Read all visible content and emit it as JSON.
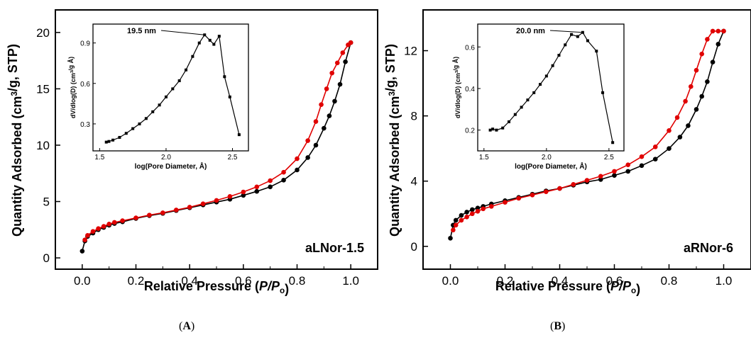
{
  "chart_data": [
    {
      "panel_label": "A",
      "type": "line",
      "xlabel": "Relative Pressure (P/Po)",
      "ylabel": "Quantity Adsorbed (cm3/g, STP)",
      "xlim": [
        -0.1,
        1.1
      ],
      "ylim": [
        -1,
        22
      ],
      "xticks": [
        "0.0",
        "0.2",
        "0.4",
        "0.6",
        "0.8",
        "1.0"
      ],
      "yticks": [
        "0",
        "5",
        "10",
        "15",
        "20"
      ],
      "sample_label": "aLNor-1.5",
      "series": [
        {
          "color": "#000000",
          "x": [
            0.0,
            0.01,
            0.02,
            0.04,
            0.06,
            0.08,
            0.1,
            0.12,
            0.15,
            0.2,
            0.25,
            0.3,
            0.35,
            0.4,
            0.45,
            0.5,
            0.55,
            0.6,
            0.65,
            0.7,
            0.75,
            0.8,
            0.84,
            0.87,
            0.9,
            0.92,
            0.94,
            0.96,
            0.98,
            1.0
          ],
          "y": [
            0.6,
            1.5,
            1.9,
            2.2,
            2.5,
            2.7,
            2.9,
            3.05,
            3.2,
            3.5,
            3.75,
            3.95,
            4.2,
            4.45,
            4.7,
            4.95,
            5.2,
            5.55,
            5.9,
            6.3,
            6.9,
            7.8,
            8.9,
            10.0,
            11.5,
            12.6,
            13.9,
            15.4,
            17.4,
            19.1
          ]
        },
        {
          "color": "#e00000",
          "x": [
            0.01,
            0.02,
            0.04,
            0.06,
            0.08,
            0.1,
            0.12,
            0.15,
            0.2,
            0.25,
            0.3,
            0.35,
            0.4,
            0.45,
            0.5,
            0.55,
            0.6,
            0.65,
            0.7,
            0.75,
            0.8,
            0.84,
            0.87,
            0.89,
            0.91,
            0.93,
            0.95,
            0.97,
            0.99,
            1.0
          ],
          "y": [
            1.6,
            2.0,
            2.35,
            2.6,
            2.8,
            3.0,
            3.15,
            3.3,
            3.55,
            3.8,
            4.0,
            4.25,
            4.5,
            4.8,
            5.1,
            5.45,
            5.85,
            6.3,
            6.85,
            7.6,
            8.8,
            10.4,
            12.1,
            13.6,
            15.0,
            16.4,
            17.3,
            18.2,
            18.9,
            19.1
          ]
        }
      ],
      "inset": {
        "type": "line",
        "xlabel": "log(Pore Diameter, Å)",
        "ylabel": "dV/dlog(D) (cm3/g Å)",
        "xlim": [
          1.45,
          2.62
        ],
        "ylim": [
          0.1,
          1.04
        ],
        "xticks": [
          "1.5",
          "2.0",
          "2.5"
        ],
        "yticks": [
          "0.3",
          "0.6",
          "0.9"
        ],
        "annotation": "19.5 nm",
        "x": [
          1.55,
          1.57,
          1.6,
          1.65,
          1.7,
          1.75,
          1.8,
          1.85,
          1.9,
          1.95,
          2.0,
          2.05,
          2.1,
          2.15,
          2.2,
          2.25,
          2.29,
          2.33,
          2.36,
          2.4,
          2.44,
          2.48,
          2.55
        ],
        "y": [
          0.165,
          0.17,
          0.18,
          0.2,
          0.23,
          0.265,
          0.3,
          0.34,
          0.39,
          0.44,
          0.5,
          0.56,
          0.62,
          0.7,
          0.8,
          0.9,
          0.96,
          0.92,
          0.89,
          0.95,
          0.65,
          0.5,
          0.22
        ]
      }
    },
    {
      "panel_label": "B",
      "type": "line",
      "xlabel": "Relative Pressure (P/Po)",
      "ylabel": "Quantity Adsorbed (cm3/g, STP)",
      "xlim": [
        -0.1,
        1.1
      ],
      "ylim": [
        -1.4,
        14.5
      ],
      "xticks": [
        "0.0",
        "0.2",
        "0.4",
        "0.6",
        "0.8",
        "1.0"
      ],
      "yticks": [
        "0",
        "4",
        "8",
        "12"
      ],
      "sample_label": "aRNor-6",
      "series": [
        {
          "color": "#000000",
          "x": [
            0.0,
            0.01,
            0.02,
            0.04,
            0.06,
            0.08,
            0.1,
            0.12,
            0.15,
            0.2,
            0.25,
            0.3,
            0.35,
            0.4,
            0.45,
            0.5,
            0.55,
            0.6,
            0.65,
            0.7,
            0.75,
            0.8,
            0.84,
            0.87,
            0.9,
            0.92,
            0.94,
            0.96,
            0.98,
            1.0
          ],
          "y": [
            0.5,
            1.3,
            1.6,
            1.9,
            2.1,
            2.25,
            2.35,
            2.45,
            2.6,
            2.8,
            3.0,
            3.2,
            3.4,
            3.55,
            3.75,
            3.95,
            4.1,
            4.35,
            4.6,
            4.95,
            5.35,
            6.0,
            6.7,
            7.4,
            8.4,
            9.2,
            10.1,
            11.3,
            12.4,
            13.2
          ]
        },
        {
          "color": "#e00000",
          "x": [
            0.01,
            0.02,
            0.04,
            0.06,
            0.08,
            0.1,
            0.12,
            0.15,
            0.2,
            0.25,
            0.3,
            0.35,
            0.4,
            0.45,
            0.5,
            0.55,
            0.6,
            0.65,
            0.7,
            0.75,
            0.8,
            0.83,
            0.86,
            0.88,
            0.9,
            0.92,
            0.94,
            0.96,
            0.98,
            1.0
          ],
          "y": [
            1.0,
            1.3,
            1.6,
            1.8,
            2.0,
            2.15,
            2.3,
            2.45,
            2.7,
            2.95,
            3.15,
            3.35,
            3.55,
            3.8,
            4.05,
            4.3,
            4.6,
            5.0,
            5.5,
            6.1,
            7.1,
            7.9,
            8.9,
            9.8,
            10.8,
            11.8,
            12.7,
            13.2,
            13.2,
            13.2
          ]
        }
      ],
      "inset": {
        "type": "line",
        "xlabel": "log(Pore Diameter, Å)",
        "ylabel": "dV/dlog(D) (cm3/g Å)",
        "xlim": [
          1.45,
          2.62
        ],
        "ylim": [
          0.1,
          0.71
        ],
        "xticks": [
          "1.5",
          "2.0",
          "2.5"
        ],
        "yticks": [
          "0.2",
          "0.4",
          "0.6"
        ],
        "annotation": "20.0 nm",
        "x": [
          1.55,
          1.57,
          1.6,
          1.65,
          1.7,
          1.75,
          1.8,
          1.85,
          1.9,
          1.95,
          2.0,
          2.05,
          2.1,
          2.15,
          2.2,
          2.25,
          2.29,
          2.33,
          2.4,
          2.45,
          2.53
        ],
        "y": [
          0.2,
          0.205,
          0.2,
          0.21,
          0.24,
          0.275,
          0.31,
          0.345,
          0.38,
          0.42,
          0.46,
          0.51,
          0.56,
          0.61,
          0.66,
          0.65,
          0.67,
          0.63,
          0.58,
          0.38,
          0.14
        ]
      }
    }
  ]
}
